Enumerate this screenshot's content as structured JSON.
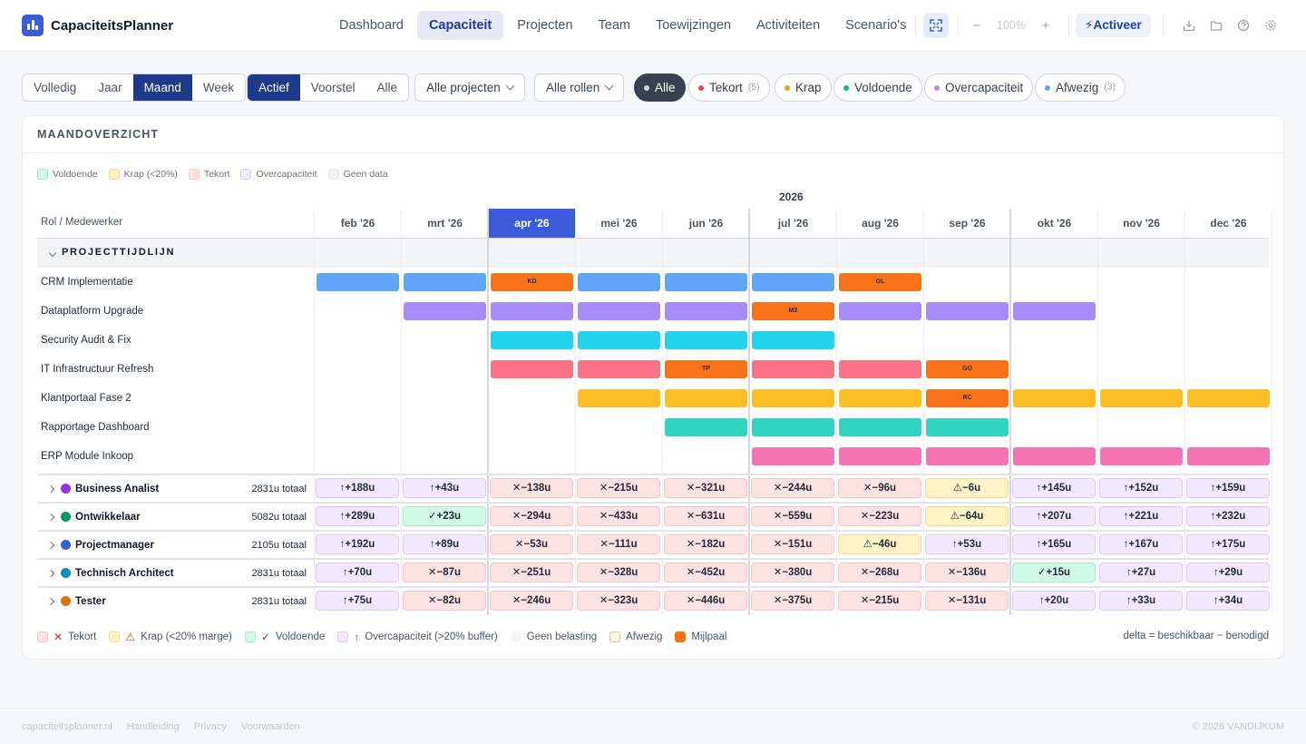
{
  "app": {
    "name": "CapaciteitsPlanner"
  },
  "nav": {
    "items": [
      "Dashboard",
      "Capaciteit",
      "Projecten",
      "Team",
      "Toewijzingen",
      "Activiteiten",
      "Scenario's"
    ],
    "active": 1
  },
  "toolbar": {
    "zoom_out": "−",
    "zoom": "100%",
    "zoom_in": "+",
    "activate": "⚡Activeer"
  },
  "filters": {
    "period": {
      "options": [
        "Volledig",
        "Jaar",
        "Maand",
        "Week"
      ],
      "active": 2
    },
    "status": {
      "options": [
        "Actief",
        "Voorstel",
        "Alle"
      ],
      "active": 0
    },
    "projects": "Alle projecten",
    "roles": "Alle rollen",
    "chips": [
      {
        "label": "Alle",
        "count": "",
        "color": "#d1d5db",
        "active": true
      },
      {
        "label": "Tekort",
        "count": "(5)",
        "color": "#ef4444",
        "active": false
      },
      {
        "label": "Krap",
        "count": "",
        "color": "#f59e0b",
        "active": false
      },
      {
        "label": "Voldoende",
        "count": "",
        "color": "#10b981",
        "active": false
      },
      {
        "label": "Overcapaciteit",
        "count": "",
        "color": "#c084fc",
        "active": false
      },
      {
        "label": "Afwezig",
        "count": "(3)",
        "color": "#60a5fa",
        "active": false
      }
    ]
  },
  "overview": {
    "title": "MAANDOVERZICHT",
    "legend_top": [
      {
        "label": "Voldoende",
        "bg": "#d1fae5",
        "border": "#a6e9c8"
      },
      {
        "label": "Krap (<20%)",
        "bg": "#fef3c7",
        "border": "#f5d98a"
      },
      {
        "label": "Tekort",
        "bg": "#fde2e2",
        "border": "#f6c4c4"
      },
      {
        "label": "Overcapaciteit",
        "bg": "#f3e8ff",
        "border": "#ddc7fb"
      },
      {
        "label": "Geen data",
        "bg": "#f3f4f6",
        "border": "#e5e7eb"
      }
    ],
    "year": "2026",
    "row_header": "Rol / Medewerker",
    "months": [
      "feb '26",
      "mrt '26",
      "apr '26",
      "mei '26",
      "jun '26",
      "jul '26",
      "aug '26",
      "sep '26",
      "okt '26",
      "nov '26",
      "dec '26"
    ],
    "current_month": 2,
    "section_title": "PROJECTTIJDLIJN",
    "projects": [
      {
        "name": "CRM Implementatie",
        "color": "#60a5fa",
        "start": 0,
        "end": 6,
        "milestones": [
          {
            "m": 2,
            "label": "KD"
          },
          {
            "m": 6,
            "label": "GL"
          }
        ]
      },
      {
        "name": "Dataplatform Upgrade",
        "color": "#a78bfa",
        "start": 1,
        "end": 8,
        "milestones": [
          {
            "m": 5,
            "label": "M2"
          }
        ]
      },
      {
        "name": "Security Audit & Fix",
        "color": "#22d3ee",
        "start": 2,
        "end": 5,
        "milestones": []
      },
      {
        "name": "IT Infrastructuur Refresh",
        "color": "#fb7185",
        "start": 2,
        "end": 7,
        "milestones": [
          {
            "m": 4,
            "label": "TP"
          },
          {
            "m": 7,
            "label": "GO"
          }
        ]
      },
      {
        "name": "Klantportaal Fase 2",
        "color": "#fbbf24",
        "start": 3,
        "end": 10,
        "milestones": [
          {
            "m": 7,
            "label": "RC"
          }
        ]
      },
      {
        "name": "Rapportage Dashboard",
        "color": "#2dd4bf",
        "start": 4,
        "end": 7,
        "milestones": []
      },
      {
        "name": "ERP Module Inkoop",
        "color": "#f472b6",
        "start": 5,
        "end": 10,
        "milestones": []
      }
    ],
    "milestone_color": "#f97316",
    "roles": [
      {
        "name": "Business Analist",
        "color": "#9333ea",
        "total": "2831u totaal",
        "cells": [
          [
            "over",
            "↑+188u"
          ],
          [
            "over",
            "↑+43u"
          ],
          [
            "short",
            "✕−138u"
          ],
          [
            "short",
            "✕−215u"
          ],
          [
            "short",
            "✕−321u"
          ],
          [
            "short",
            "✕−244u"
          ],
          [
            "short",
            "✕−96u"
          ],
          [
            "tight",
            "⚠−6u"
          ],
          [
            "over",
            "↑+145u"
          ],
          [
            "over",
            "↑+152u"
          ],
          [
            "over",
            "↑+159u"
          ]
        ]
      },
      {
        "name": "Ontwikkelaar",
        "color": "#059669",
        "total": "5082u totaal",
        "cells": [
          [
            "over",
            "↑+289u"
          ],
          [
            "ok",
            "✓+23u"
          ],
          [
            "short",
            "✕−294u"
          ],
          [
            "short",
            "✕−433u"
          ],
          [
            "short",
            "✕−631u"
          ],
          [
            "short",
            "✕−559u"
          ],
          [
            "short",
            "✕−223u"
          ],
          [
            "tight",
            "⚠−64u"
          ],
          [
            "over",
            "↑+207u"
          ],
          [
            "over",
            "↑+221u"
          ],
          [
            "over",
            "↑+232u"
          ]
        ]
      },
      {
        "name": "Projectmanager",
        "color": "#3b5bdb",
        "total": "2105u totaal",
        "cells": [
          [
            "over",
            "↑+192u"
          ],
          [
            "over",
            "↑+89u"
          ],
          [
            "short",
            "✕−53u"
          ],
          [
            "short",
            "✕−111u"
          ],
          [
            "short",
            "✕−182u"
          ],
          [
            "short",
            "✕−151u"
          ],
          [
            "tight",
            "⚠−46u"
          ],
          [
            "over",
            "↑+53u"
          ],
          [
            "over",
            "↑+165u"
          ],
          [
            "over",
            "↑+167u"
          ],
          [
            "over",
            "↑+175u"
          ]
        ]
      },
      {
        "name": "Technisch Architect",
        "color": "#0891b2",
        "total": "2831u totaal",
        "cells": [
          [
            "over",
            "↑+70u"
          ],
          [
            "short",
            "✕−87u"
          ],
          [
            "short",
            "✕−251u"
          ],
          [
            "short",
            "✕−328u"
          ],
          [
            "short",
            "✕−452u"
          ],
          [
            "short",
            "✕−380u"
          ],
          [
            "short",
            "✕−268u"
          ],
          [
            "short",
            "✕−136u"
          ],
          [
            "ok",
            "✓+15u"
          ],
          [
            "over",
            "↑+27u"
          ],
          [
            "over",
            "↑+29u"
          ]
        ]
      },
      {
        "name": "Tester",
        "color": "#d97706",
        "total": "2831u totaal",
        "cells": [
          [
            "over",
            "↑+75u"
          ],
          [
            "short",
            "✕−82u"
          ],
          [
            "short",
            "✕−246u"
          ],
          [
            "short",
            "✕−323u"
          ],
          [
            "short",
            "✕−446u"
          ],
          [
            "short",
            "✕−375u"
          ],
          [
            "short",
            "✕−215u"
          ],
          [
            "short",
            "✕−131u"
          ],
          [
            "over",
            "↑+20u"
          ],
          [
            "over",
            "↑+33u"
          ],
          [
            "over",
            "↑+34u"
          ]
        ]
      }
    ],
    "legend_bottom": [
      {
        "label": "Tekort",
        "sym": "✕",
        "symColor": "#dc2626",
        "bg": "#fde2e2",
        "border": "#f6c4c4"
      },
      {
        "label": "Krap (<20% marge)",
        "sym": "⚠",
        "symColor": "#b45309",
        "bg": "#fef3c7",
        "border": "#f5d98a"
      },
      {
        "label": "Voldoende",
        "sym": "✓",
        "symColor": "#047857",
        "bg": "#d1fae5",
        "border": "#a6e9c8"
      },
      {
        "label": "Overcapaciteit (>20% buffer)",
        "sym": "↑",
        "symColor": "#7c3aed",
        "bg": "#f3e8ff",
        "border": "#ddc7fb"
      },
      {
        "label": "Geen belasting",
        "sym": "",
        "symColor": "",
        "bg": "#f3f4f6",
        "border": "#f3f4f6",
        "round": true
      },
      {
        "label": "Afwezig",
        "sym": "",
        "symColor": "",
        "bg": "#fff7ed",
        "border": "#fdba74"
      },
      {
        "label": "Mijlpaal",
        "sym": "",
        "symColor": "",
        "bg": "#f97316",
        "border": "#f97316"
      }
    ],
    "delta_note": "delta = beschikbaar − benodigd"
  },
  "footer": {
    "links": [
      "capaciteitsplanner.nl",
      "Handleiding",
      "Privacy",
      "Voorwaarden"
    ],
    "copyright": "© 2026 VANDIJKUM"
  }
}
